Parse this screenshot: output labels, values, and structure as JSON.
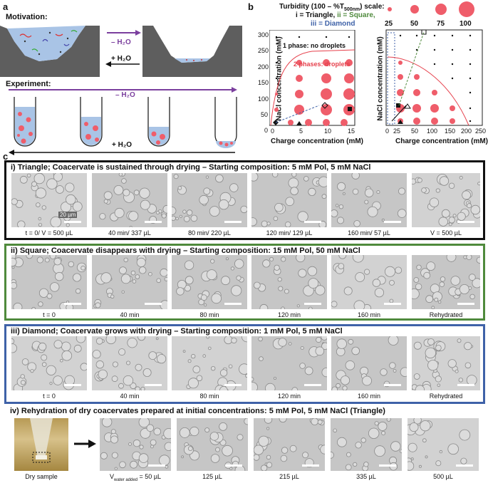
{
  "panel_a": {
    "label": "a",
    "motivation_label": "Motivation:",
    "experiment_label": "Experiment:",
    "minus_water": "– H₂O",
    "plus_water": "+ H₂O",
    "colors": {
      "water": "#a9c4e6",
      "rock": "#5e5e5e",
      "droplet": "#ef5d6a",
      "arrow_purple": "#7b3f9e"
    }
  },
  "panel_b": {
    "label": "b",
    "turbidity_title": "Turbidity (100 – %T",
    "turbidity_sub": "500nm",
    "turbidity_end": ") scale:",
    "legend_line2_prefix": "i = Triangle, ",
    "legend_line2_green": "ii = Square,",
    "legend_line3": "iii = Diamond",
    "scale_values": [
      "25",
      "50",
      "75",
      "100"
    ],
    "left_ylabel": "NaCl concentration (mM)",
    "right_ylabel": "NaCl concentration (mM)",
    "left_xlabel": "Charge concentration (mM)",
    "right_xlabel": "Charge concentration (mM)",
    "one_phase": "1 phase: no droplets",
    "two_phase": "2 phases: droplets",
    "left_yticks": [
      "0",
      "50",
      "100",
      "150",
      "200",
      "250",
      "300"
    ],
    "left_xticks": [
      "0",
      "5",
      "10",
      "15"
    ],
    "right_xticks": [
      "0",
      "25",
      "50",
      "100",
      "150",
      "200",
      "250"
    ]
  },
  "panel_c": {
    "label": "c",
    "row1": {
      "title": "i) Triangle; Coacervate is sustained through drying – Starting composition: 5 mM Pol, 5 mM NaCl",
      "scale_bar": "20 µm",
      "captions": [
        "t = 0/ V = 500 µL",
        "40 min/ 337 µL",
        "80 min/ 220 µL",
        "120 min/ 129 µL",
        "160 min/ 57 µL",
        "V = 500 µL"
      ],
      "border_color": "#111111"
    },
    "row2": {
      "title": "ii) Square; Coacervate disappears with drying – Starting composition: 15 mM Pol, 50 mM NaCl",
      "captions": [
        "t = 0",
        "40 min",
        "80 min",
        "120 min",
        "160 min",
        "Rehydrated"
      ],
      "border_color": "#4f8a3c"
    },
    "row3": {
      "title": "iii) Diamond; Coacervate grows with drying – Starting composition: 1 mM Pol, 5 mM NaCl",
      "captions": [
        "t = 0",
        "40 min",
        "80 min",
        "120 min",
        "160 min",
        "Rehydrated"
      ],
      "border_color": "#3f62a8"
    },
    "row4": {
      "title": "iv) Rehydration of dry coacervates prepared at initial concentrations: 5 mM Pol, 5 mM NaCl (Triangle)",
      "captions": [
        "Dry sample",
        "V",
        "water added",
        "= 50 µL",
        "125 µL",
        "215 µL",
        "335 µL",
        "500 µL"
      ]
    }
  }
}
